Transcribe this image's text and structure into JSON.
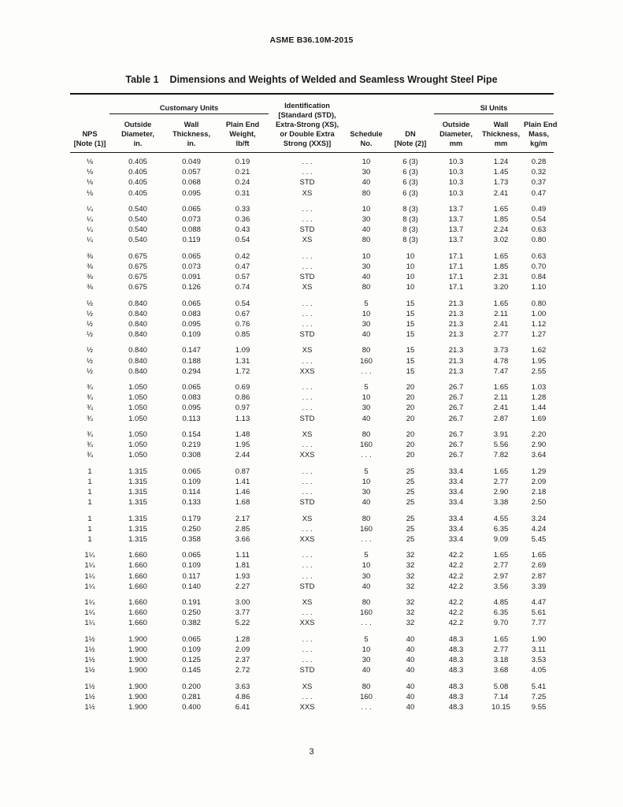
{
  "page": {
    "doc_header": "ASME B36.10M-2015",
    "table_label": "Table 1",
    "table_title": "Dimensions and Weights of Welded and Seamless Wrought Steel Pipe",
    "page_number": "3"
  },
  "table": {
    "spanners": {
      "customary": "Customary Units",
      "si": "SI Units"
    },
    "columns": [
      {
        "key": "nps",
        "label": "NPS\n[Note (1)]"
      },
      {
        "key": "od-in",
        "label": "Outside\nDiameter,\nin."
      },
      {
        "key": "wall-in",
        "label": "Wall\nThickness,\nin."
      },
      {
        "key": "weight-lbft",
        "label": "Plain End\nWeight,\nlb/ft"
      },
      {
        "key": "identification",
        "label": "Identification\n[Standard (STD),\nExtra-Strong (XS),\nor Double Extra\nStrong (XXS)]"
      },
      {
        "key": "schedule",
        "label": "Schedule\nNo."
      },
      {
        "key": "dn",
        "label": "DN\n[Note (2)]"
      },
      {
        "key": "od-mm",
        "label": "Outside\nDiameter,\nmm"
      },
      {
        "key": "wall-mm",
        "label": "Wall\nThickness,\nmm"
      },
      {
        "key": "mass-kgm",
        "label": "Plain End\nMass,\nkg/m"
      }
    ],
    "groups": [
      {
        "rows": [
          [
            "⅛",
            "0.405",
            "0.049",
            "0.19",
            ". . .",
            "10",
            "6 (3)",
            "10.3",
            "1.24",
            "0.28"
          ],
          [
            "⅛",
            "0.405",
            "0.057",
            "0.21",
            ". . .",
            "30",
            "6 (3)",
            "10.3",
            "1.45",
            "0.32"
          ],
          [
            "⅛",
            "0.405",
            "0.068",
            "0.24",
            "STD",
            "40",
            "6 (3)",
            "10.3",
            "1.73",
            "0.37"
          ],
          [
            "⅛",
            "0.405",
            "0.095",
            "0.31",
            "XS",
            "80",
            "6 (3)",
            "10.3",
            "2.41",
            "0.47"
          ]
        ]
      },
      {
        "rows": [
          [
            "¼",
            "0.540",
            "0.065",
            "0.33",
            ". . .",
            "10",
            "8 (3)",
            "13.7",
            "1.65",
            "0.49"
          ],
          [
            "¼",
            "0.540",
            "0.073",
            "0.36",
            ". . .",
            "30",
            "8 (3)",
            "13.7",
            "1.85",
            "0.54"
          ],
          [
            "¼",
            "0.540",
            "0.088",
            "0.43",
            "STD",
            "40",
            "8 (3)",
            "13.7",
            "2.24",
            "0.63"
          ],
          [
            "¼",
            "0.540",
            "0.119",
            "0.54",
            "XS",
            "80",
            "8 (3)",
            "13.7",
            "3.02",
            "0.80"
          ]
        ]
      },
      {
        "rows": [
          [
            "⅜",
            "0.675",
            "0.065",
            "0.42",
            ". . .",
            "10",
            "10",
            "17.1",
            "1.65",
            "0.63"
          ],
          [
            "⅜",
            "0.675",
            "0.073",
            "0.47",
            ". . .",
            "30",
            "10",
            "17.1",
            "1.85",
            "0.70"
          ],
          [
            "⅜",
            "0.675",
            "0.091",
            "0.57",
            "STD",
            "40",
            "10",
            "17.1",
            "2.31",
            "0.84"
          ],
          [
            "⅜",
            "0.675",
            "0.126",
            "0.74",
            "XS",
            "80",
            "10",
            "17.1",
            "3.20",
            "1.10"
          ]
        ]
      },
      {
        "rows": [
          [
            "½",
            "0.840",
            "0.065",
            "0.54",
            ". . .",
            "5",
            "15",
            "21.3",
            "1.65",
            "0.80"
          ],
          [
            "½",
            "0.840",
            "0.083",
            "0.67",
            ". . .",
            "10",
            "15",
            "21.3",
            "2.11",
            "1.00"
          ],
          [
            "½",
            "0.840",
            "0.095",
            "0.76",
            ". . .",
            "30",
            "15",
            "21.3",
            "2.41",
            "1.12"
          ],
          [
            "½",
            "0.840",
            "0.109",
            "0.85",
            "STD",
            "40",
            "15",
            "21.3",
            "2.77",
            "1.27"
          ]
        ]
      },
      {
        "rows": [
          [
            "½",
            "0.840",
            "0.147",
            "1.09",
            "XS",
            "80",
            "15",
            "21.3",
            "3.73",
            "1.62"
          ],
          [
            "½",
            "0.840",
            "0.188",
            "1.31",
            ". . .",
            "160",
            "15",
            "21.3",
            "4.78",
            "1.95"
          ],
          [
            "½",
            "0.840",
            "0.294",
            "1.72",
            "XXS",
            ". . .",
            "15",
            "21.3",
            "7.47",
            "2.55"
          ]
        ]
      },
      {
        "rows": [
          [
            "¾",
            "1.050",
            "0.065",
            "0.69",
            ". . .",
            "5",
            "20",
            "26.7",
            "1.65",
            "1.03"
          ],
          [
            "¾",
            "1.050",
            "0.083",
            "0.86",
            ". . .",
            "10",
            "20",
            "26.7",
            "2.11",
            "1.28"
          ],
          [
            "¾",
            "1.050",
            "0.095",
            "0.97",
            ". . .",
            "30",
            "20",
            "26.7",
            "2.41",
            "1.44"
          ],
          [
            "¾",
            "1.050",
            "0.113",
            "1.13",
            "STD",
            "40",
            "20",
            "26.7",
            "2.87",
            "1.69"
          ]
        ]
      },
      {
        "rows": [
          [
            "¾",
            "1.050",
            "0.154",
            "1.48",
            "XS",
            "80",
            "20",
            "26.7",
            "3.91",
            "2.20"
          ],
          [
            "¾",
            "1.050",
            "0.219",
            "1.95",
            ". . .",
            "160",
            "20",
            "26.7",
            "5.56",
            "2.90"
          ],
          [
            "¾",
            "1.050",
            "0.308",
            "2.44",
            "XXS",
            ". . .",
            "20",
            "26.7",
            "7.82",
            "3.64"
          ]
        ]
      },
      {
        "rows": [
          [
            "1",
            "1.315",
            "0.065",
            "0.87",
            ". . .",
            "5",
            "25",
            "33.4",
            "1.65",
            "1.29"
          ],
          [
            "1",
            "1.315",
            "0.109",
            "1.41",
            ". . .",
            "10",
            "25",
            "33.4",
            "2.77",
            "2.09"
          ],
          [
            "1",
            "1.315",
            "0.114",
            "1.46",
            ". . .",
            "30",
            "25",
            "33.4",
            "2.90",
            "2.18"
          ],
          [
            "1",
            "1.315",
            "0.133",
            "1.68",
            "STD",
            "40",
            "25",
            "33.4",
            "3.38",
            "2.50"
          ]
        ]
      },
      {
        "rows": [
          [
            "1",
            "1.315",
            "0.179",
            "2.17",
            "XS",
            "80",
            "25",
            "33.4",
            "4.55",
            "3.24"
          ],
          [
            "1",
            "1.315",
            "0.250",
            "2.85",
            ". . .",
            "160",
            "25",
            "33.4",
            "6.35",
            "4.24"
          ],
          [
            "1",
            "1.315",
            "0.358",
            "3.66",
            "XXS",
            ". . .",
            "25",
            "33.4",
            "9.09",
            "5.45"
          ]
        ]
      },
      {
        "rows": [
          [
            "1¼",
            "1.660",
            "0.065",
            "1.11",
            ". . .",
            "5",
            "32",
            "42.2",
            "1.65",
            "1.65"
          ],
          [
            "1¼",
            "1.660",
            "0.109",
            "1.81",
            ". . .",
            "10",
            "32",
            "42.2",
            "2.77",
            "2.69"
          ],
          [
            "1¼",
            "1.660",
            "0.117",
            "1.93",
            ". . .",
            "30",
            "32",
            "42.2",
            "2.97",
            "2.87"
          ],
          [
            "1¼",
            "1.660",
            "0.140",
            "2.27",
            "STD",
            "40",
            "32",
            "42.2",
            "3.56",
            "3.39"
          ]
        ]
      },
      {
        "rows": [
          [
            "1¼",
            "1.660",
            "0.191",
            "3.00",
            "XS",
            "80",
            "32",
            "42.2",
            "4.85",
            "4.47"
          ],
          [
            "1¼",
            "1.660",
            "0.250",
            "3.77",
            ". . .",
            "160",
            "32",
            "42.2",
            "6.35",
            "5.61"
          ],
          [
            "1¼",
            "1.660",
            "0.382",
            "5.22",
            "XXS",
            ". . .",
            "32",
            "42.2",
            "9.70",
            "7.77"
          ]
        ]
      },
      {
        "rows": [
          [
            "1½",
            "1.900",
            "0.065",
            "1.28",
            ". . .",
            "5",
            "40",
            "48.3",
            "1.65",
            "1.90"
          ],
          [
            "1½",
            "1.900",
            "0.109",
            "2.09",
            ". . .",
            "10",
            "40",
            "48.3",
            "2.77",
            "3.11"
          ],
          [
            "1½",
            "1.900",
            "0.125",
            "2.37",
            ". . .",
            "30",
            "40",
            "48.3",
            "3.18",
            "3.53"
          ],
          [
            "1½",
            "1.900",
            "0.145",
            "2.72",
            "STD",
            "40",
            "40",
            "48.3",
            "3.68",
            "4.05"
          ]
        ]
      },
      {
        "rows": [
          [
            "1½",
            "1.900",
            "0.200",
            "3.63",
            "XS",
            "80",
            "40",
            "48.3",
            "5.08",
            "5.41"
          ],
          [
            "1½",
            "1.900",
            "0.281",
            "4.86",
            ". . .",
            "160",
            "40",
            "48.3",
            "7.14",
            "7.25"
          ],
          [
            "1½",
            "1.900",
            "0.400",
            "6.41",
            "XXS",
            ". . .",
            "40",
            "48.3",
            "10.15",
            "9.55"
          ]
        ]
      }
    ]
  }
}
